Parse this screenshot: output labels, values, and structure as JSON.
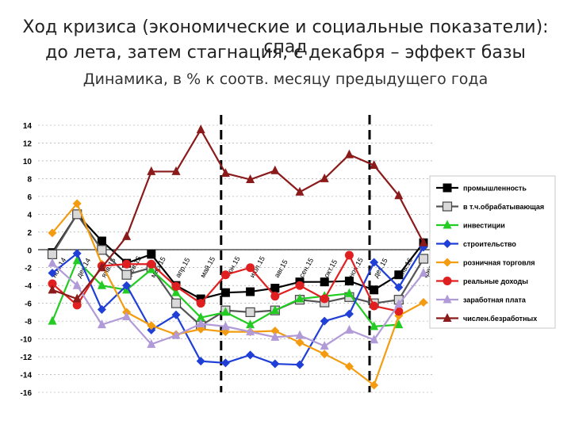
{
  "header": {
    "title_line1": "Ход кризиса (экономические и социальные показатели): спад",
    "title_line2": "до лета, затем стагнация, с декабря – эффект базы",
    "subtitle": "Динамика, в % к соотв. месяцу предыдущего года"
  },
  "chart_data": {
    "type": "line",
    "ylim": [
      -16,
      14
    ],
    "yticks": [
      14,
      12,
      10,
      8,
      6,
      4,
      2,
      0,
      -2,
      -4,
      -6,
      -8,
      -10,
      -12,
      -14,
      -16
    ],
    "categories": [
      "ноя.14",
      "дек.14",
      "янв.15",
      "фев.15",
      "мар.15",
      "апр.15",
      "май.15",
      "июн.15",
      "июл.15",
      "авг.15",
      "сен.15",
      "окт.15",
      "ноя.15",
      "дек.15",
      "янв.16",
      "фев.16"
    ],
    "x_tick_labels": [
      "ноя.14",
      "дек.14",
      "янв.15",
      "фев.15",
      "мар.15",
      "апр.15",
      "май.15",
      "июн.15",
      "июл.15",
      "авг.15",
      "сен.15",
      "окт.15",
      "ноя.15",
      "дек.15",
      "янв.16",
      "фев.16"
    ],
    "vertical_markers_after_index": [
      6,
      12
    ],
    "series": [
      {
        "name": "промышленность",
        "color": "#000000",
        "marker": "square-filled",
        "values": [
          -0.3,
          4.0,
          1.0,
          -1.5,
          -0.5,
          -4.0,
          -5.5,
          -4.8,
          -4.7,
          -4.3,
          -3.6,
          -3.6,
          -3.5,
          -4.5,
          -2.8,
          0.8
        ]
      },
      {
        "name": "в т.ч.обрабатывающая",
        "color": "#555555",
        "marker": "square-open",
        "values": [
          -0.5,
          4.0,
          0.0,
          -2.8,
          -2.0,
          -6.0,
          -8.5,
          -6.8,
          -7.0,
          -6.8,
          -5.6,
          -5.9,
          -5.3,
          -6.0,
          -5.6,
          -1.0
        ]
      },
      {
        "name": "инвестиции",
        "color": "#22cc22",
        "marker": "triangle",
        "values": [
          -8.0,
          -1.2,
          -4.0,
          -4.5,
          -2.2,
          -4.8,
          -7.6,
          -7.0,
          -8.4,
          -6.8,
          -5.5,
          -5.2,
          -4.9,
          -8.6,
          -8.4,
          null
        ]
      },
      {
        "name": "строительство",
        "color": "#1f3fd6",
        "marker": "diamond",
        "values": [
          -2.6,
          -0.4,
          -6.7,
          -4.0,
          -9.0,
          -7.3,
          -12.5,
          -12.7,
          -11.8,
          -12.8,
          -12.9,
          -8.0,
          -7.2,
          -1.4,
          -4.2,
          0.3
        ]
      },
      {
        "name": "розничная торговля",
        "color": "#f39c12",
        "marker": "diamond",
        "values": [
          1.9,
          5.2,
          -1.6,
          -7.0,
          -8.5,
          -9.5,
          -8.9,
          -9.2,
          -9.2,
          -9.1,
          -10.4,
          -11.7,
          -13.1,
          -15.2,
          -7.4,
          -5.9
        ]
      },
      {
        "name": "реальные доходы",
        "color": "#e02020",
        "marker": "circle",
        "values": [
          -3.8,
          -6.2,
          -1.8,
          -1.6,
          -1.6,
          -4.1,
          -6.0,
          -2.8,
          -2.0,
          -5.2,
          -4.0,
          -5.5,
          -0.6,
          -6.3,
          -6.9,
          null
        ]
      },
      {
        "name": "заработная плата",
        "color": "#b19ad8",
        "marker": "triangle",
        "values": [
          -1.5,
          -4.0,
          -8.4,
          -7.5,
          -10.6,
          -9.6,
          -8.3,
          -8.6,
          -9.2,
          -9.8,
          -9.6,
          -10.8,
          -9.0,
          -10.1,
          -6.1,
          -2.6
        ]
      },
      {
        "name": "числен.безработных",
        "color": "#8b1a1a",
        "marker": "triangle",
        "values": [
          -4.5,
          -5.5,
          -2.0,
          1.5,
          8.8,
          8.8,
          13.5,
          8.6,
          7.9,
          8.9,
          6.5,
          8.0,
          10.7,
          9.5,
          6.1,
          0.8
        ]
      }
    ]
  }
}
